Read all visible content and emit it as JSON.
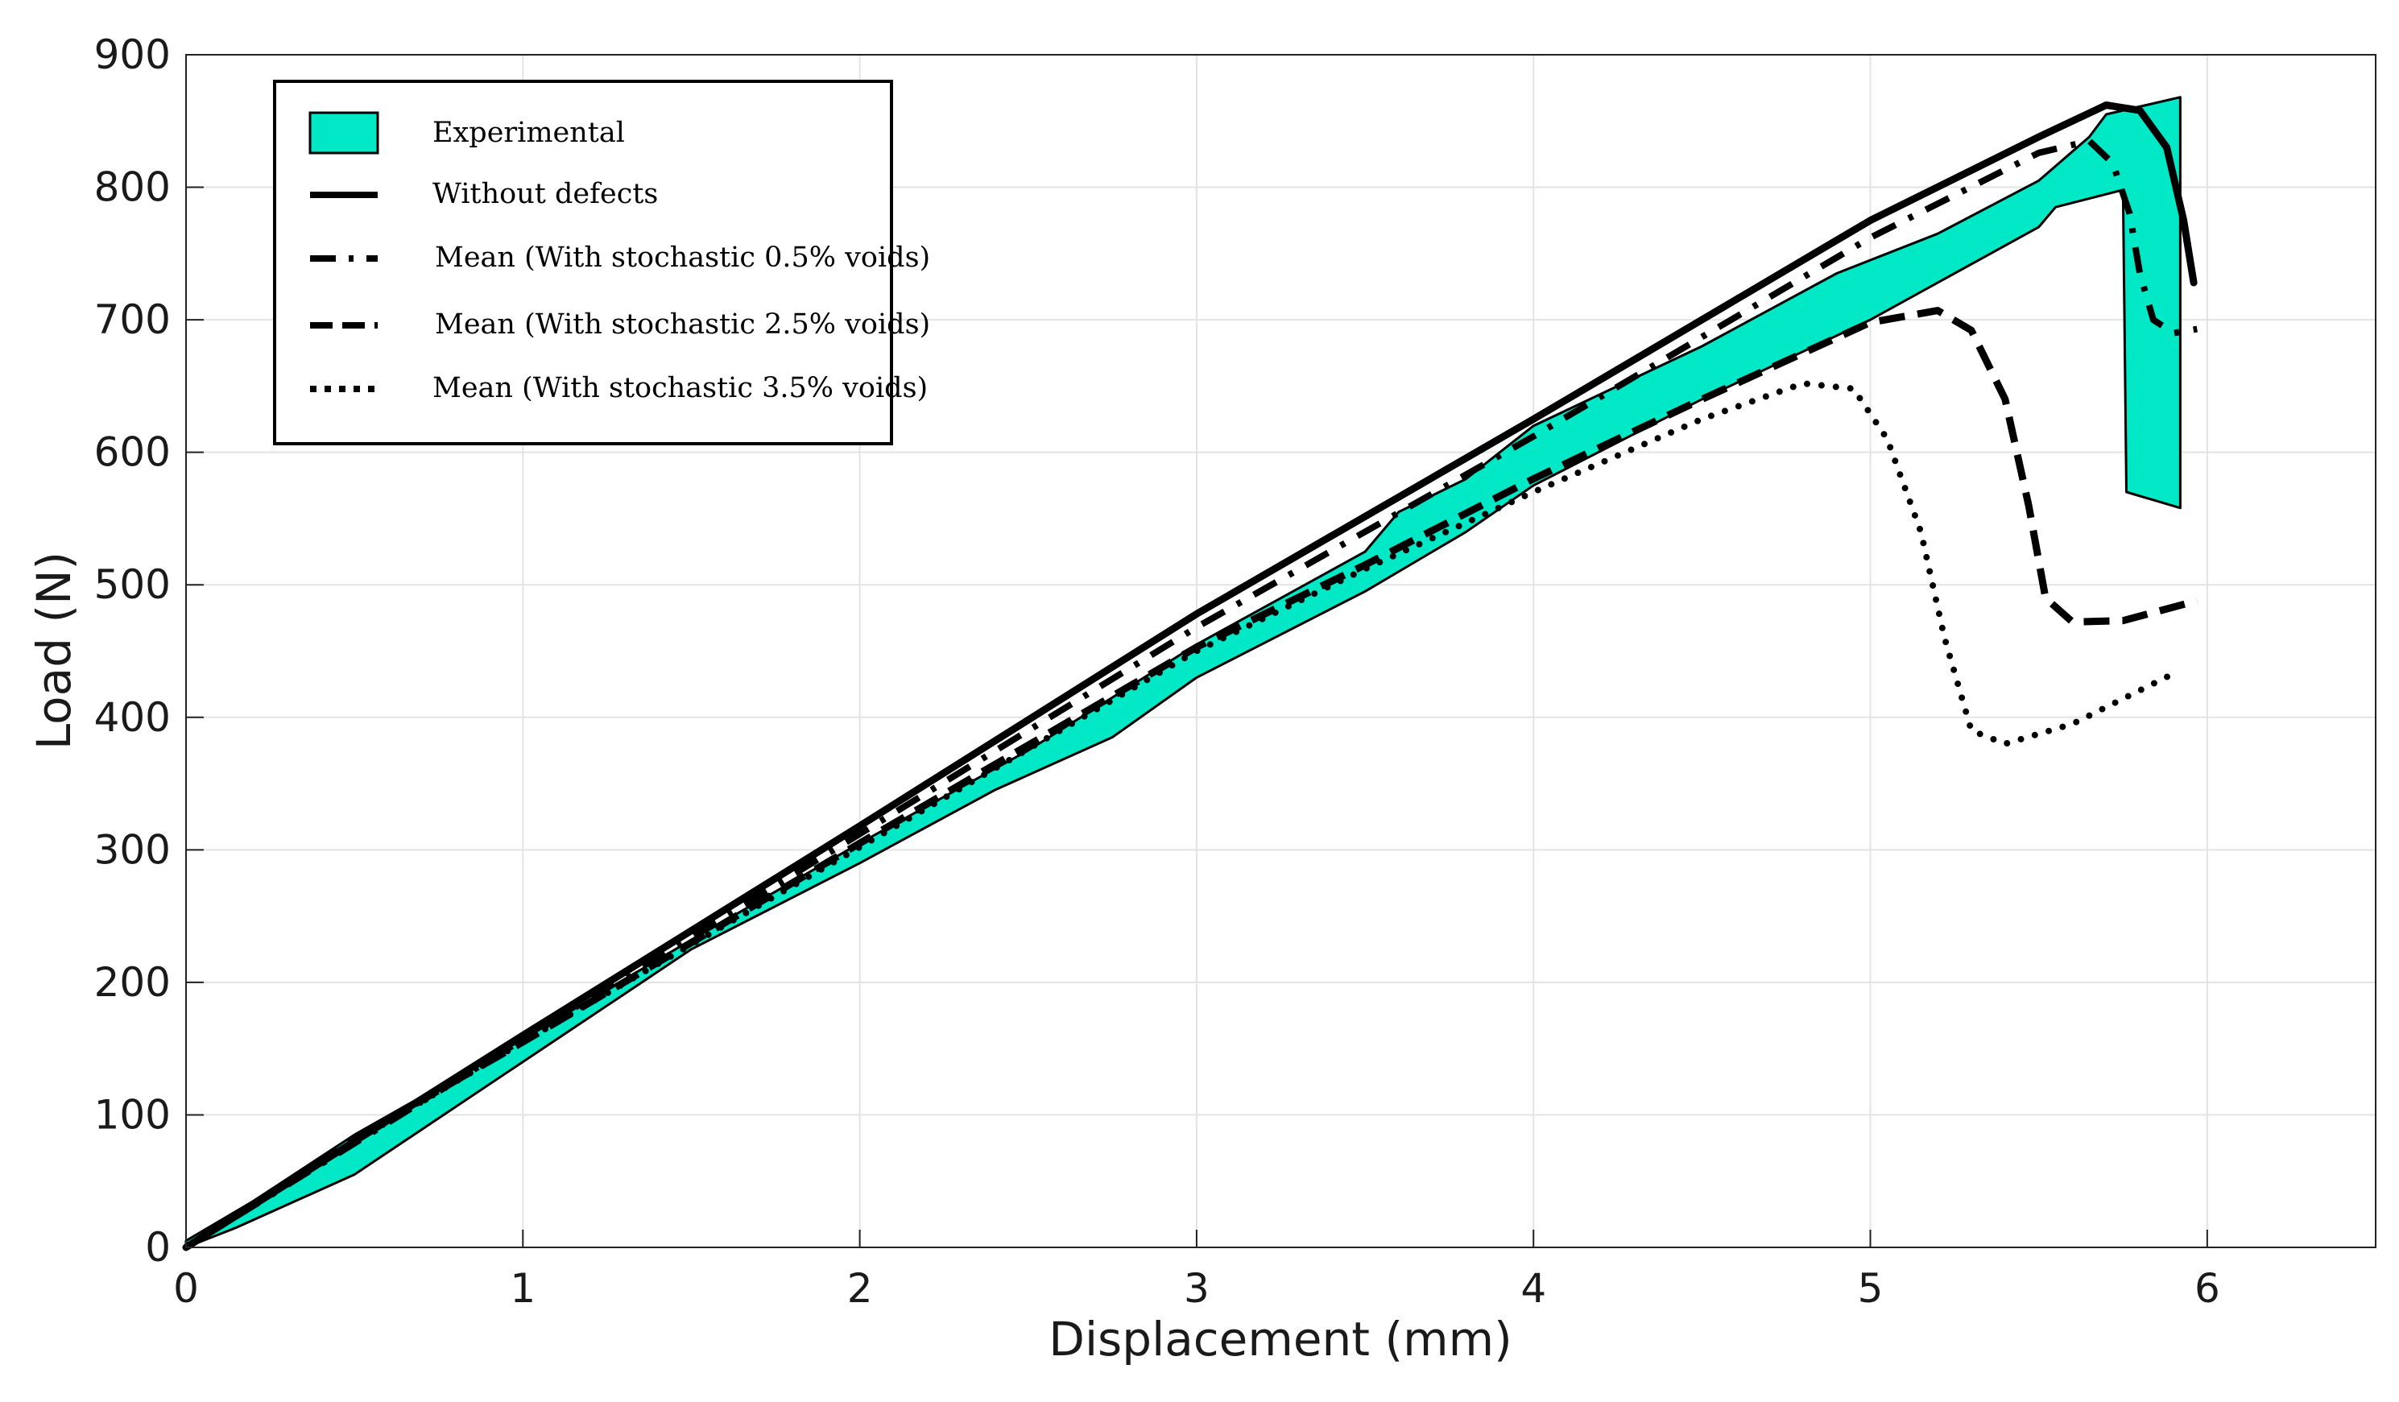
{
  "chart_data": {
    "type": "line",
    "title": "",
    "xlabel": "Displacement (mm)",
    "ylabel": "Load (N)",
    "xlim": [
      0,
      6.5
    ],
    "ylim": [
      0,
      900
    ],
    "xticks": [
      0,
      1,
      2,
      3,
      4,
      5,
      6
    ],
    "yticks": [
      0,
      100,
      200,
      300,
      400,
      500,
      600,
      700,
      800,
      900
    ],
    "grid": true,
    "legend_position": "top-left",
    "band": {
      "name": "Experimental",
      "color": "#00e8c6",
      "upper": [
        [
          0,
          5
        ],
        [
          0.2,
          35
        ],
        [
          0.5,
          85
        ],
        [
          1.0,
          157
        ],
        [
          1.5,
          232
        ],
        [
          2.0,
          305
        ],
        [
          2.5,
          375
        ],
        [
          3.0,
          455
        ],
        [
          3.5,
          525
        ],
        [
          3.6,
          555
        ],
        [
          3.8,
          580
        ],
        [
          4.0,
          620
        ],
        [
          4.5,
          680
        ],
        [
          4.9,
          735
        ],
        [
          5.2,
          765
        ],
        [
          5.5,
          805
        ],
        [
          5.65,
          838
        ],
        [
          5.7,
          855
        ],
        [
          5.92,
          868
        ]
      ],
      "lower": [
        [
          0,
          0
        ],
        [
          0.15,
          15
        ],
        [
          0.5,
          55
        ],
        [
          1.0,
          140
        ],
        [
          1.5,
          225
        ],
        [
          2.0,
          290
        ],
        [
          2.4,
          345
        ],
        [
          2.75,
          385
        ],
        [
          3.0,
          430
        ],
        [
          3.5,
          495
        ],
        [
          3.8,
          540
        ],
        [
          4.0,
          575
        ],
        [
          4.5,
          640
        ],
        [
          5.0,
          700
        ],
        [
          5.5,
          770
        ],
        [
          5.55,
          785
        ],
        [
          5.75,
          798
        ],
        [
          5.76,
          570
        ],
        [
          5.92,
          558
        ]
      ]
    },
    "series": [
      {
        "name": "Without defects",
        "style": "solid",
        "points": [
          [
            0,
            0
          ],
          [
            1,
            160
          ],
          [
            2,
            318
          ],
          [
            3,
            478
          ],
          [
            4,
            625
          ],
          [
            5,
            775
          ],
          [
            5.5,
            838
          ],
          [
            5.7,
            862
          ],
          [
            5.8,
            858
          ],
          [
            5.88,
            830
          ],
          [
            5.93,
            775
          ],
          [
            5.96,
            728
          ]
        ]
      },
      {
        "name": "Mean (With stochastic 0.5% voids)",
        "style": "dashdot",
        "points": [
          [
            0,
            0
          ],
          [
            1,
            157
          ],
          [
            2,
            312
          ],
          [
            3,
            468
          ],
          [
            4,
            612
          ],
          [
            5,
            762
          ],
          [
            5.5,
            826
          ],
          [
            5.65,
            835
          ],
          [
            5.72,
            818
          ],
          [
            5.77,
            780
          ],
          [
            5.8,
            735
          ],
          [
            5.84,
            700
          ],
          [
            5.9,
            690
          ],
          [
            5.97,
            693
          ]
        ]
      },
      {
        "name": "Mean (With stochastic 2.5% voids)",
        "style": "dashed",
        "points": [
          [
            0,
            0
          ],
          [
            0.5,
            82
          ],
          [
            1,
            155
          ],
          [
            2,
            305
          ],
          [
            3,
            453
          ],
          [
            3.5,
            515
          ],
          [
            4,
            580
          ],
          [
            4.5,
            640
          ],
          [
            5,
            698
          ],
          [
            5.2,
            707
          ],
          [
            5.3,
            692
          ],
          [
            5.4,
            640
          ],
          [
            5.47,
            560
          ],
          [
            5.52,
            490
          ],
          [
            5.6,
            472
          ],
          [
            5.75,
            473
          ],
          [
            5.97,
            488
          ]
        ]
      },
      {
        "name": "Mean (With stochastic 3.5% voids)",
        "style": "dotted",
        "points": [
          [
            0,
            0
          ],
          [
            0.5,
            80
          ],
          [
            1,
            155
          ],
          [
            2,
            302
          ],
          [
            3,
            450
          ],
          [
            3.5,
            512
          ],
          [
            4,
            570
          ],
          [
            4.5,
            625
          ],
          [
            4.8,
            652
          ],
          [
            4.95,
            648
          ],
          [
            5.05,
            610
          ],
          [
            5.15,
            540
          ],
          [
            5.22,
            460
          ],
          [
            5.3,
            390
          ],
          [
            5.4,
            380
          ],
          [
            5.6,
            395
          ],
          [
            5.9,
            433
          ]
        ]
      }
    ]
  }
}
